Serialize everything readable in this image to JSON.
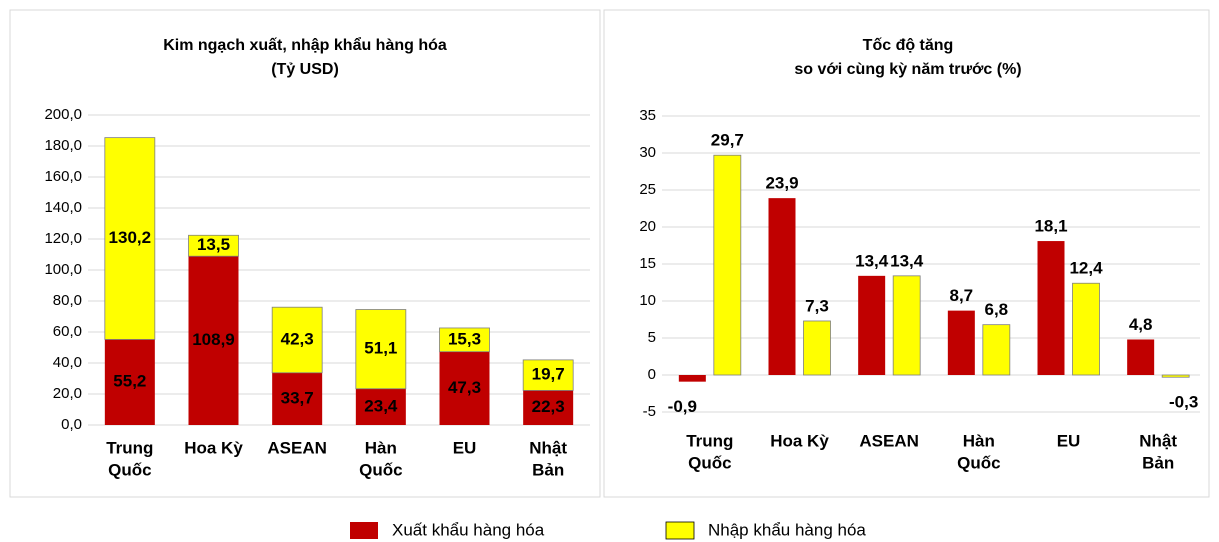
{
  "chart_data": [
    {
      "type": "stacked_bar",
      "title": [
        "Kim ngạch xuất, nhập khẩu hàng hóa",
        "(Tỷ USD)"
      ],
      "categories": [
        [
          "Trung",
          "Quốc"
        ],
        [
          "Hoa Kỳ"
        ],
        [
          "ASEAN"
        ],
        [
          "Hàn",
          "Quốc"
        ],
        [
          "EU"
        ],
        [
          "Nhật",
          "Bản"
        ]
      ],
      "series": [
        {
          "name": "Xuất khẩu hàng hóa",
          "color": "#c00000",
          "values": [
            55.2,
            108.9,
            33.7,
            23.4,
            47.3,
            22.3
          ],
          "value_labels": [
            "55,2",
            "108,9",
            "33,7",
            "23,4",
            "47,3",
            "22,3"
          ]
        },
        {
          "name": "Nhập khẩu hàng hóa",
          "color": "#ffff00",
          "values": [
            130.2,
            13.5,
            42.3,
            51.1,
            15.3,
            19.7
          ],
          "value_labels": [
            "130,2",
            "13,5",
            "42,3",
            "51,1",
            "15,3",
            "19,7"
          ]
        }
      ],
      "ylim": [
        0,
        200
      ],
      "yticks": [
        {
          "value": 0,
          "label": "0,0"
        },
        {
          "value": 20,
          "label": "20,0"
        },
        {
          "value": 40,
          "label": "40,0"
        },
        {
          "value": 60,
          "label": "60,0"
        },
        {
          "value": 80,
          "label": "80,0"
        },
        {
          "value": 100,
          "label": "100,0"
        },
        {
          "value": 120,
          "label": "120,0"
        },
        {
          "value": 140,
          "label": "140,0"
        },
        {
          "value": 160,
          "label": "160,0"
        },
        {
          "value": 180,
          "label": "180,0"
        },
        {
          "value": 200,
          "label": "200,0"
        }
      ],
      "grid": true
    },
    {
      "type": "grouped_bar",
      "title": [
        "Tốc độ tăng",
        "so với cùng kỳ năm trước (%)"
      ],
      "categories": [
        [
          "Trung",
          "Quốc"
        ],
        [
          "Hoa Kỳ"
        ],
        [
          "ASEAN"
        ],
        [
          "Hàn",
          "Quốc"
        ],
        [
          "EU"
        ],
        [
          "Nhật",
          "Bản"
        ]
      ],
      "series": [
        {
          "color": "#c00000",
          "values": [
            -0.9,
            23.9,
            13.4,
            8.7,
            18.1,
            4.8
          ],
          "value_labels": [
            "-0,9",
            "23,9",
            "13,4",
            "8,7",
            "18,1",
            "4,8"
          ]
        },
        {
          "color": "#ffff00",
          "values": [
            29.7,
            7.3,
            13.4,
            6.8,
            12.4,
            -0.3
          ],
          "value_labels": [
            "29,7",
            "7,3",
            "13,4",
            "6,8",
            "12,4",
            "-0,3"
          ]
        }
      ],
      "ylim": [
        -5,
        35
      ],
      "yticks": [
        -5,
        0,
        5,
        10,
        15,
        20,
        25,
        30,
        35
      ],
      "grid": true
    }
  ]
}
